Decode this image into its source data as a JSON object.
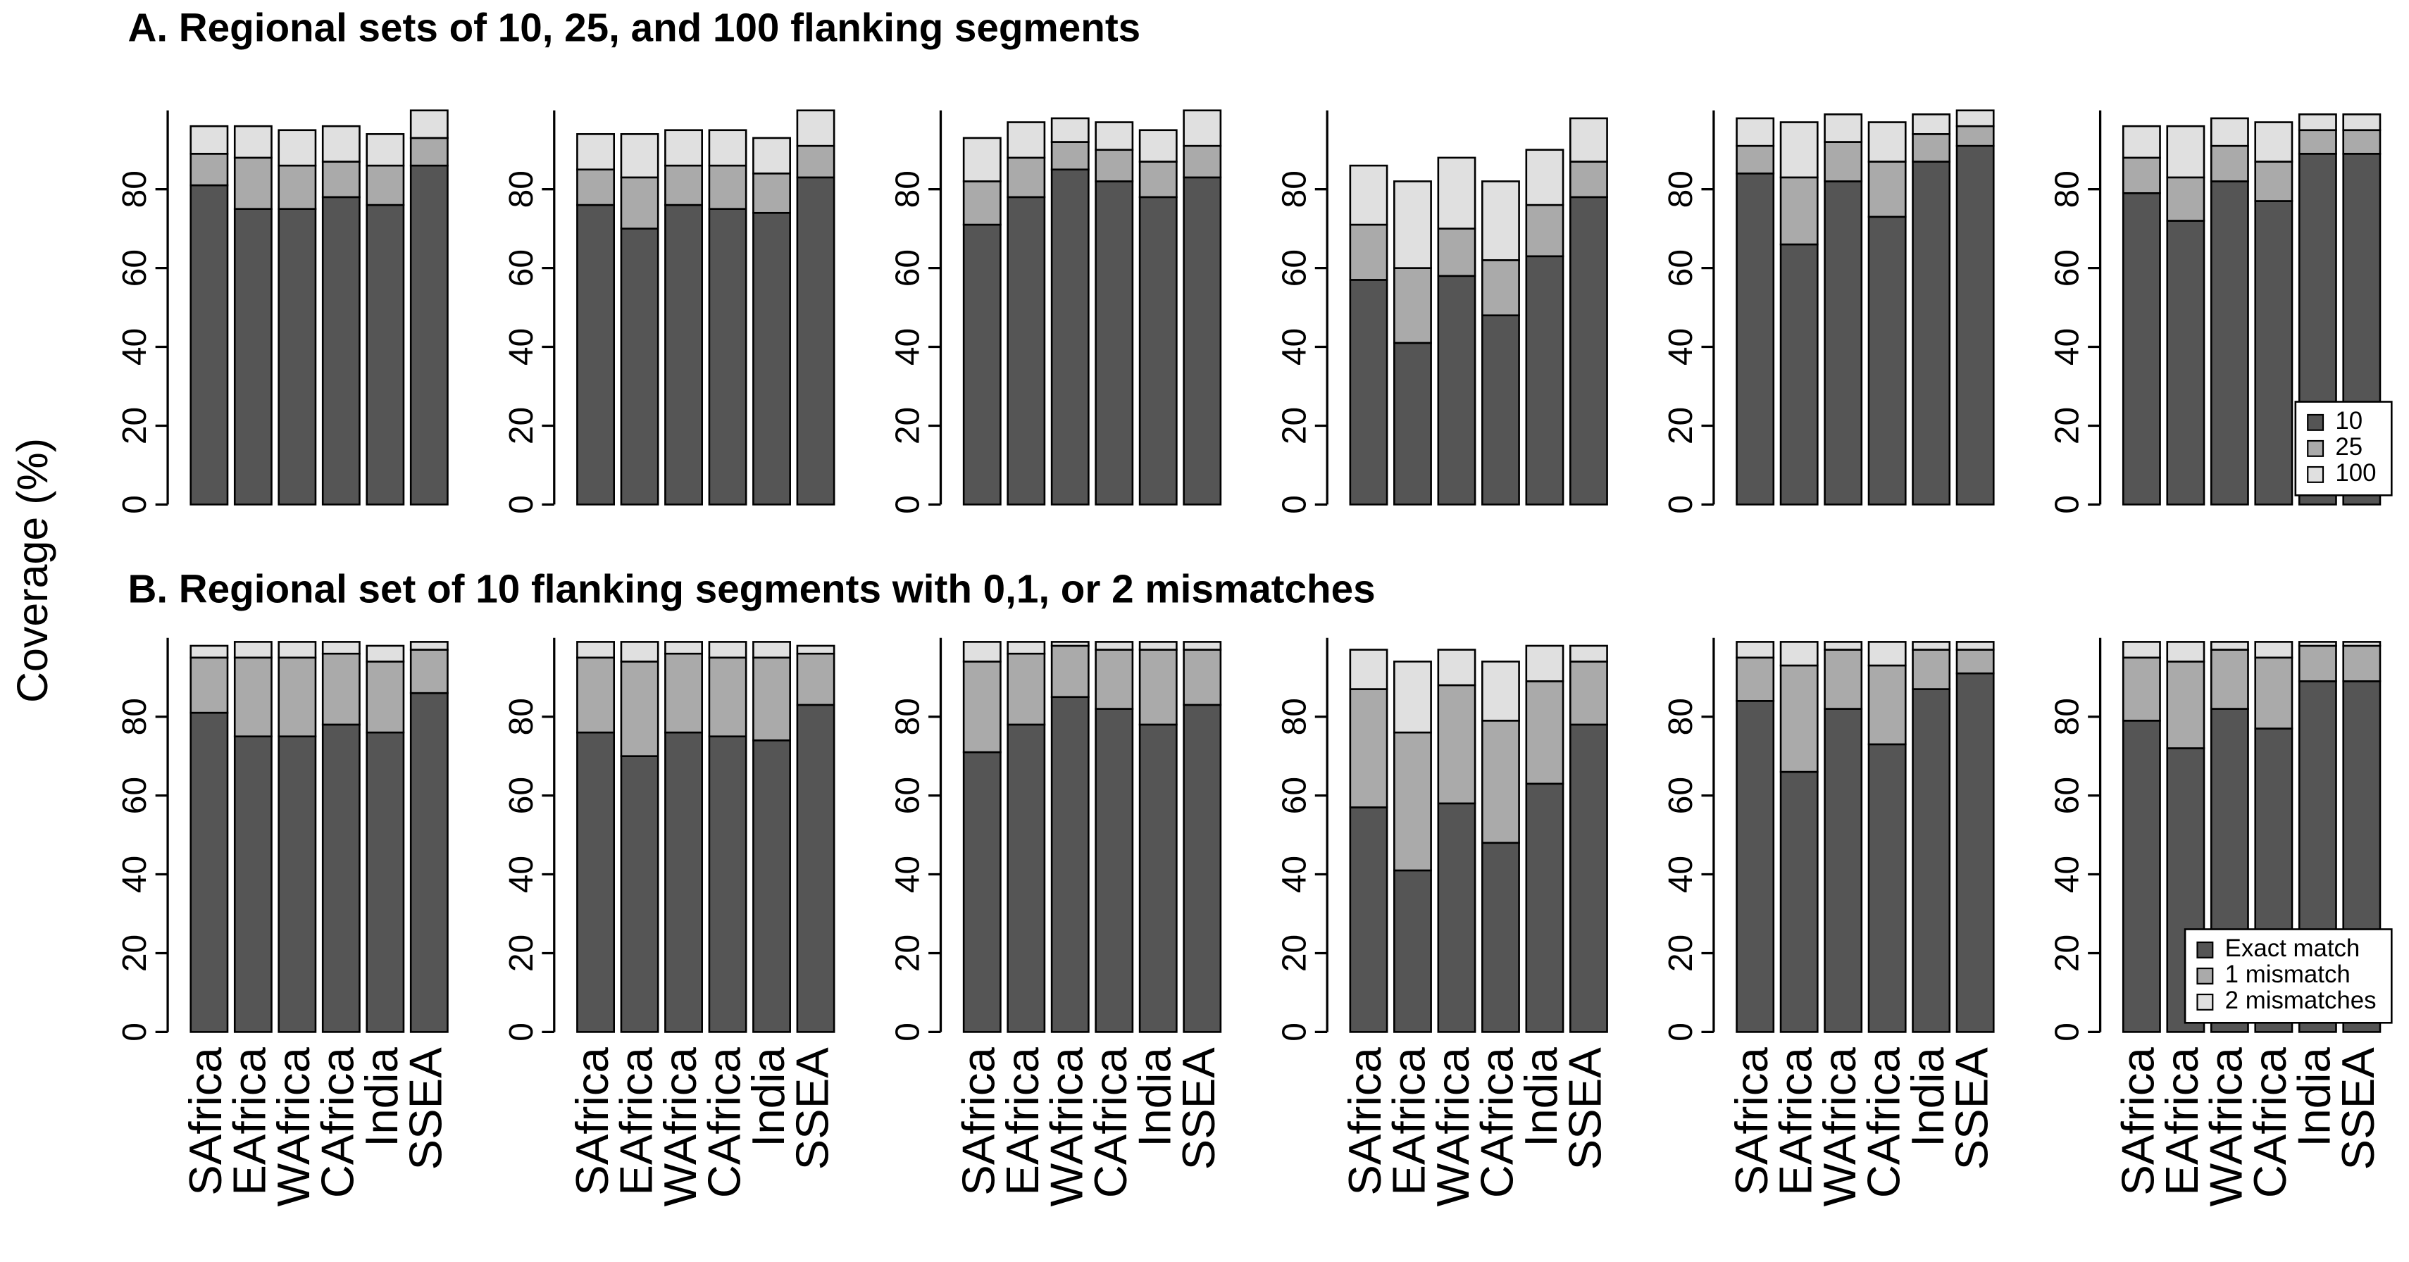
{
  "figure": {
    "section_titles": [
      "A. Regional sets of 10, 25, and 100 flanking segments",
      "B. Regional set of 10 flanking segments with 0,1, or 2 mismatches"
    ],
    "ylabel": "Coverage (%)"
  },
  "chart_data": [
    {
      "type": "bar",
      "stacked": true,
      "ylim": [
        0,
        100
      ],
      "yticks": [
        0,
        20,
        40,
        60,
        80
      ],
      "series": [
        {
          "color": "#555555",
          "values": [
            81,
            75,
            75,
            78,
            76,
            86
          ]
        },
        {
          "color": "#aaaaaa",
          "values": [
            8,
            13,
            11,
            9,
            10,
            7
          ]
        },
        {
          "color": "#e0e0e0",
          "values": [
            7,
            8,
            9,
            9,
            8,
            7
          ]
        }
      ]
    },
    {
      "type": "bar",
      "stacked": true,
      "ylim": [
        0,
        100
      ],
      "yticks": [
        0,
        20,
        40,
        60,
        80
      ],
      "series": [
        {
          "color": "#555555",
          "values": [
            76,
            70,
            76,
            75,
            74,
            83
          ]
        },
        {
          "color": "#aaaaaa",
          "values": [
            9,
            13,
            10,
            11,
            10,
            8
          ]
        },
        {
          "color": "#e0e0e0",
          "values": [
            9,
            11,
            9,
            9,
            9,
            9
          ]
        }
      ]
    },
    {
      "type": "bar",
      "stacked": true,
      "ylim": [
        0,
        100
      ],
      "yticks": [
        0,
        20,
        40,
        60,
        80
      ],
      "series": [
        {
          "color": "#555555",
          "values": [
            71,
            78,
            85,
            82,
            78,
            83
          ]
        },
        {
          "color": "#aaaaaa",
          "values": [
            11,
            10,
            7,
            8,
            9,
            8
          ]
        },
        {
          "color": "#e0e0e0",
          "values": [
            11,
            9,
            6,
            7,
            8,
            9
          ]
        }
      ]
    },
    {
      "type": "bar",
      "stacked": true,
      "ylim": [
        0,
        100
      ],
      "yticks": [
        0,
        20,
        40,
        60,
        80
      ],
      "series": [
        {
          "color": "#555555",
          "values": [
            57,
            41,
            58,
            48,
            63,
            78
          ]
        },
        {
          "color": "#aaaaaa",
          "values": [
            14,
            19,
            12,
            14,
            13,
            9
          ]
        },
        {
          "color": "#e0e0e0",
          "values": [
            15,
            22,
            18,
            20,
            14,
            11
          ]
        }
      ]
    },
    {
      "type": "bar",
      "stacked": true,
      "ylim": [
        0,
        100
      ],
      "yticks": [
        0,
        20,
        40,
        60,
        80
      ],
      "series": [
        {
          "color": "#555555",
          "values": [
            84,
            66,
            82,
            73,
            87,
            91
          ]
        },
        {
          "color": "#aaaaaa",
          "values": [
            7,
            17,
            10,
            14,
            7,
            5
          ]
        },
        {
          "color": "#e0e0e0",
          "values": [
            7,
            14,
            7,
            10,
            5,
            4
          ]
        }
      ]
    },
    {
      "type": "bar",
      "stacked": true,
      "ylim": [
        0,
        100
      ],
      "yticks": [
        0,
        20,
        40,
        60,
        80
      ],
      "legend": "bottom-right",
      "series": [
        {
          "name": "10",
          "color": "#555555",
          "values": [
            79,
            72,
            82,
            77,
            89,
            89
          ]
        },
        {
          "name": "25",
          "color": "#aaaaaa",
          "values": [
            9,
            11,
            9,
            10,
            6,
            6
          ]
        },
        {
          "name": "100",
          "color": "#e0e0e0",
          "values": [
            8,
            13,
            7,
            10,
            4,
            4
          ]
        }
      ]
    },
    {
      "type": "bar",
      "stacked": true,
      "ylim": [
        0,
        100
      ],
      "yticks": [
        0,
        20,
        40,
        60,
        80
      ],
      "categories": [
        "SAfrica",
        "EAfrica",
        "WAfrica",
        "CAfrica",
        "India",
        "SSEA"
      ],
      "series": [
        {
          "color": "#555555",
          "values": [
            81,
            75,
            75,
            78,
            76,
            86
          ]
        },
        {
          "color": "#aaaaaa",
          "values": [
            14,
            20,
            20,
            18,
            18,
            11
          ]
        },
        {
          "color": "#e0e0e0",
          "values": [
            3,
            4,
            4,
            3,
            4,
            2
          ]
        }
      ]
    },
    {
      "type": "bar",
      "stacked": true,
      "ylim": [
        0,
        100
      ],
      "yticks": [
        0,
        20,
        40,
        60,
        80
      ],
      "categories": [
        "SAfrica",
        "EAfrica",
        "WAfrica",
        "CAfrica",
        "India",
        "SSEA"
      ],
      "series": [
        {
          "color": "#555555",
          "values": [
            76,
            70,
            76,
            75,
            74,
            83
          ]
        },
        {
          "color": "#aaaaaa",
          "values": [
            19,
            24,
            20,
            20,
            21,
            13
          ]
        },
        {
          "color": "#e0e0e0",
          "values": [
            4,
            5,
            3,
            4,
            4,
            2
          ]
        }
      ]
    },
    {
      "type": "bar",
      "stacked": true,
      "ylim": [
        0,
        100
      ],
      "yticks": [
        0,
        20,
        40,
        60,
        80
      ],
      "categories": [
        "SAfrica",
        "EAfrica",
        "WAfrica",
        "CAfrica",
        "India",
        "SSEA"
      ],
      "series": [
        {
          "color": "#555555",
          "values": [
            71,
            78,
            85,
            82,
            78,
            83
          ]
        },
        {
          "color": "#aaaaaa",
          "values": [
            23,
            18,
            13,
            15,
            19,
            14
          ]
        },
        {
          "color": "#e0e0e0",
          "values": [
            5,
            3,
            1,
            2,
            2,
            2
          ]
        }
      ]
    },
    {
      "type": "bar",
      "stacked": true,
      "ylim": [
        0,
        100
      ],
      "yticks": [
        0,
        20,
        40,
        60,
        80
      ],
      "categories": [
        "SAfrica",
        "EAfrica",
        "WAfrica",
        "CAfrica",
        "India",
        "SSEA"
      ],
      "series": [
        {
          "color": "#555555",
          "values": [
            57,
            41,
            58,
            48,
            63,
            78
          ]
        },
        {
          "color": "#aaaaaa",
          "values": [
            30,
            35,
            30,
            31,
            26,
            16
          ]
        },
        {
          "color": "#e0e0e0",
          "values": [
            10,
            18,
            9,
            15,
            9,
            4
          ]
        }
      ]
    },
    {
      "type": "bar",
      "stacked": true,
      "ylim": [
        0,
        100
      ],
      "yticks": [
        0,
        20,
        40,
        60,
        80
      ],
      "categories": [
        "SAfrica",
        "EAfrica",
        "WAfrica",
        "CAfrica",
        "India",
        "SSEA"
      ],
      "series": [
        {
          "color": "#555555",
          "values": [
            84,
            66,
            82,
            73,
            87,
            91
          ]
        },
        {
          "color": "#aaaaaa",
          "values": [
            11,
            27,
            15,
            20,
            10,
            6
          ]
        },
        {
          "color": "#e0e0e0",
          "values": [
            4,
            6,
            2,
            6,
            2,
            2
          ]
        }
      ]
    },
    {
      "type": "bar",
      "stacked": true,
      "ylim": [
        0,
        100
      ],
      "yticks": [
        0,
        20,
        40,
        60,
        80
      ],
      "categories": [
        "SAfrica",
        "EAfrica",
        "WAfrica",
        "CAfrica",
        "India",
        "SSEA"
      ],
      "legend": "bottom-right",
      "series": [
        {
          "name": "Exact match",
          "color": "#555555",
          "values": [
            79,
            72,
            82,
            77,
            89,
            89
          ]
        },
        {
          "name": "1 mismatch",
          "color": "#aaaaaa",
          "values": [
            16,
            22,
            15,
            18,
            9,
            9
          ]
        },
        {
          "name": "2 mismatches",
          "color": "#e0e0e0",
          "values": [
            4,
            5,
            2,
            4,
            1,
            1
          ]
        }
      ]
    }
  ]
}
